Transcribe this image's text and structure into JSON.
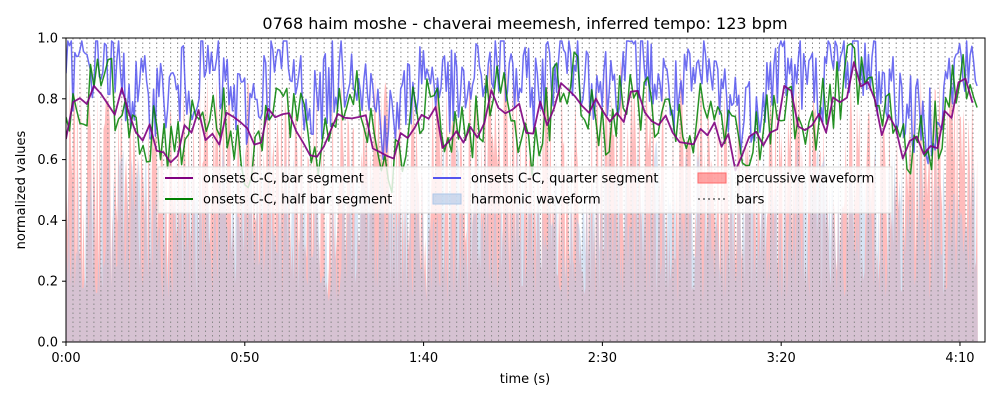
{
  "chart_data": {
    "type": "line",
    "title": "0768 haim moshe - chaverai meemesh, inferred tempo: 123 bpm",
    "xlabel": "time (s)",
    "ylabel": "normalized values",
    "xlim": [
      0,
      257
    ],
    "ylim": [
      0.0,
      1.0
    ],
    "x_ticks": [
      {
        "value": 0,
        "label": "0:00"
      },
      {
        "value": 50,
        "label": "0:50"
      },
      {
        "value": 100,
        "label": "1:40"
      },
      {
        "value": 150,
        "label": "2:30"
      },
      {
        "value": 200,
        "label": "3:20"
      },
      {
        "value": 250,
        "label": "4:10"
      }
    ],
    "y_ticks": [
      {
        "value": 0.0,
        "label": "0.0"
      },
      {
        "value": 0.2,
        "label": "0.2"
      },
      {
        "value": 0.4,
        "label": "0.4"
      },
      {
        "value": 0.6,
        "label": "0.6"
      },
      {
        "value": 0.8,
        "label": "0.8"
      },
      {
        "value": 1.0,
        "label": "1.0"
      }
    ],
    "tempo_bpm": 123,
    "bar_period_s": 1.951,
    "legend_position": "center-upper",
    "legend": [
      {
        "label": "onsets C-C, bar segment",
        "kind": "line",
        "color": "#800080"
      },
      {
        "label": "onsets C-C, half bar segment",
        "kind": "line",
        "color": "#008000"
      },
      {
        "label": "onsets C-C, quarter segment",
        "kind": "line",
        "color": "#5555ee"
      },
      {
        "label": "harmonic waveform",
        "kind": "patch",
        "color": "#aec7e8"
      },
      {
        "label": "percussive waveform",
        "kind": "patch",
        "color": "#ff6b6b"
      },
      {
        "label": "bars",
        "kind": "dotted",
        "color": "#888888"
      }
    ],
    "series": [
      {
        "name": "onsets C-C, bar segment",
        "color": "#800080",
        "x": [
          0,
          10,
          20,
          30,
          40,
          50,
          60,
          70,
          80,
          90,
          100,
          110,
          120,
          130,
          140,
          150,
          160,
          170,
          180,
          190,
          200,
          210,
          220,
          230,
          240,
          250,
          255
        ],
        "y": [
          0.72,
          0.84,
          0.72,
          0.62,
          0.74,
          0.66,
          0.78,
          0.64,
          0.8,
          0.62,
          0.76,
          0.62,
          0.8,
          0.7,
          0.84,
          0.72,
          0.8,
          0.7,
          0.72,
          0.6,
          0.78,
          0.7,
          0.86,
          0.72,
          0.6,
          0.84,
          0.72
        ]
      },
      {
        "name": "onsets C-C, half bar segment",
        "color": "#008000",
        "x": [
          0,
          10,
          20,
          30,
          40,
          50,
          60,
          70,
          80,
          90,
          100,
          110,
          120,
          130,
          140,
          150,
          160,
          170,
          180,
          190,
          200,
          210,
          220,
          230,
          240,
          250,
          255
        ],
        "y": [
          0.74,
          0.86,
          0.7,
          0.66,
          0.8,
          0.6,
          0.8,
          0.62,
          0.86,
          0.58,
          0.78,
          0.64,
          0.84,
          0.66,
          0.88,
          0.7,
          0.82,
          0.66,
          0.76,
          0.6,
          0.8,
          0.72,
          0.88,
          0.7,
          0.62,
          0.86,
          0.74
        ]
      },
      {
        "name": "onsets C-C, quarter segment",
        "color": "#5555ee",
        "x": [
          0,
          10,
          20,
          30,
          40,
          50,
          60,
          70,
          80,
          90,
          100,
          110,
          120,
          130,
          140,
          150,
          160,
          170,
          180,
          190,
          200,
          210,
          220,
          230,
          240,
          250,
          255
        ],
        "y": [
          0.88,
          0.94,
          0.8,
          0.82,
          0.9,
          0.76,
          0.92,
          0.78,
          0.94,
          0.7,
          0.9,
          0.8,
          0.92,
          0.82,
          0.96,
          0.84,
          0.94,
          0.8,
          0.88,
          0.74,
          0.92,
          0.84,
          0.96,
          0.84,
          0.7,
          0.92,
          0.86
        ]
      },
      {
        "name": "percussive waveform",
        "color": "#ff6b6b",
        "x": [
          0,
          20,
          40,
          60,
          80,
          100,
          120,
          140,
          160,
          180,
          200,
          220,
          240,
          255
        ],
        "y": [
          0.58,
          0.64,
          0.6,
          0.62,
          0.6,
          0.58,
          0.62,
          0.6,
          0.64,
          0.58,
          0.62,
          0.6,
          0.64,
          0.56
        ]
      },
      {
        "name": "harmonic waveform",
        "color": "#aec7e8",
        "x": [
          0,
          20,
          40,
          60,
          80,
          100,
          120,
          140,
          160,
          180,
          200,
          220,
          240,
          255
        ],
        "y": [
          0.5,
          0.56,
          0.52,
          0.54,
          0.5,
          0.52,
          0.56,
          0.52,
          0.54,
          0.5,
          0.54,
          0.52,
          0.56,
          0.5
        ]
      }
    ],
    "grid": false
  }
}
